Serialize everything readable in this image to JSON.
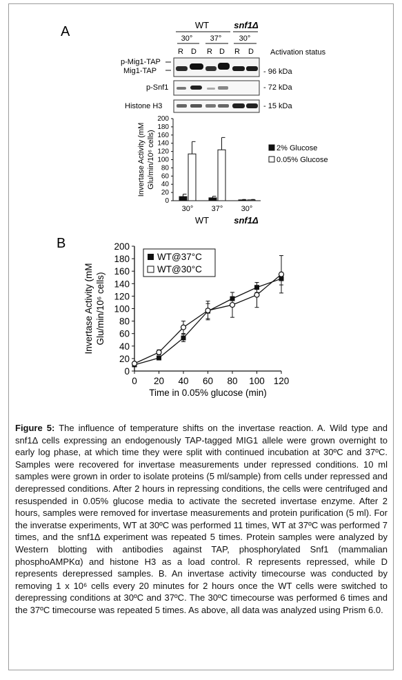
{
  "panel_a": {
    "label": "A",
    "strain_headers": [
      "WT",
      "snf1Δ"
    ],
    "temp_headers": [
      "30°",
      "37°",
      "30°"
    ],
    "lane_labels": [
      "R",
      "D",
      "R",
      "D",
      "R",
      "D"
    ],
    "activation_status_label": "Activation status",
    "blot_rows": [
      {
        "name": "p-Mig1-TAP",
        "marker": "- 96 kDa"
      },
      {
        "name": "Mig1-TAP",
        "marker": ""
      },
      {
        "name": "p-Snf1",
        "marker": "- 72 kDa"
      },
      {
        "name": "Histone H3",
        "marker": "- 15 kDa"
      }
    ],
    "bar_chart_data": {
      "type": "bar",
      "ylabel_line1": "Invertase Activity (mM",
      "ylabel_line2": "Glu/min/10⁶ cells)",
      "ylim": [
        0,
        200
      ],
      "yticks": [
        "0",
        "20",
        "40",
        "60",
        "80",
        "100",
        "120",
        "140",
        "160",
        "180",
        "200"
      ],
      "categories": [
        "30°",
        "37°",
        "30°"
      ],
      "group_labels": [
        "WT",
        "snf1Δ"
      ],
      "series": [
        {
          "name": "2% Glucose",
          "values": [
            10,
            7,
            2
          ],
          "errors": [
            6,
            4,
            1
          ],
          "color": "#111111"
        },
        {
          "name": "0.05% Glucose",
          "values": [
            114,
            124,
            2
          ],
          "errors": [
            30,
            30,
            1
          ],
          "color": "#ffffff"
        }
      ]
    }
  },
  "panel_b": {
    "label": "B",
    "chart_data": {
      "type": "line",
      "xlabel": "Time in 0.05% glucose (min)",
      "ylabel_line1": "Invertase Activity (mM",
      "ylabel_line2": "Glu/min/10⁶ cells)",
      "xlim": [
        0,
        120
      ],
      "ylim": [
        0,
        200
      ],
      "xticks": [
        "0",
        "20",
        "40",
        "60",
        "80",
        "100",
        "120"
      ],
      "yticks": [
        "0",
        "20",
        "40",
        "60",
        "80",
        "100",
        "120",
        "140",
        "160",
        "180",
        "200"
      ],
      "x": [
        0,
        20,
        40,
        60,
        80,
        100,
        120
      ],
      "series": [
        {
          "name": "WT@37°C",
          "marker": "filled-square",
          "values": [
            10,
            21,
            53,
            96,
            116,
            134,
            148
          ],
          "errors": [
            2,
            3,
            6,
            12,
            10,
            8,
            10
          ]
        },
        {
          "name": "WT@30°C",
          "marker": "open-circle",
          "values": [
            12,
            30,
            70,
            97,
            106,
            122,
            155
          ],
          "errors": [
            2,
            4,
            10,
            15,
            20,
            20,
            30
          ]
        }
      ]
    }
  },
  "caption": {
    "title": "Figure 5:",
    "text": "The influence of temperature shifts on the invertase reaction. A. Wild type and snf1Δ cells expressing an endogenously TAP-tagged MIG1 allele were grown overnight to early log phase, at which time they were split with continued incubation at 30ºC and 37ºC. Samples were recovered for invertase measurements under repressed conditions. 10 ml samples were grown in order to isolate proteins (5 ml/sample) from cells under repressed and derepressed conditions. After 2 hours in repressing conditions, the cells were centrifuged and resuspended in 0.05% glucose media to activate the secreted invertase enzyme. After 2 hours, samples were removed for invertase measurements and protein purification (5 ml). For the inveratse experiments, WT at 30ºC was performed 11 times, WT at 37ºC was performed 7 times, and the snf1Δ experiment was repeated 5 times. Protein samples were analyzed by Western blotting with antibodies against TAP, phosphorylated Snf1 (mammalian phosphoAMPKα) and histone H3 as a load control. R represents repressed, while D represents derepressed samples. B. An invertase activity timecourse was conducted by removing 1 x 10⁶ cells every 20 minutes for 2 hours once the WT cells were switched to derepressing conditions at 30ºC and 37ºC. The 30ºC timecourse was performed 6 times and the 37ºC timecourse was repeated 5 times. As above, all data was analyzed using Prism 6.0."
  }
}
